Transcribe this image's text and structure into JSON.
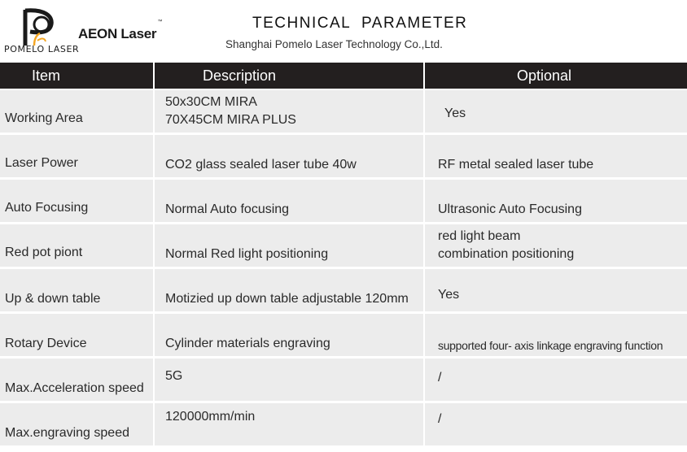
{
  "header": {
    "brand": "POMELO LASER",
    "product_brand": "AEON Laser",
    "trademark": "™",
    "title": "TECHNICAL  PARAMETER",
    "company": "Shanghai Pomelo Laser Technology Co.,Ltd."
  },
  "table": {
    "columns": [
      "Item",
      "Description",
      "Optional"
    ],
    "rows": [
      {
        "item": "Working Area",
        "description": [
          "50x30CM  MIRA",
          "70X45CM   MIRA PLUS"
        ],
        "optional": [
          "Yes"
        ]
      },
      {
        "item": "Laser Power",
        "description": [
          "CO2 glass sealed  laser tube 40w"
        ],
        "optional": [
          "RF metal sealed laser tube"
        ]
      },
      {
        "item": "Auto Focusing",
        "description": [
          "Normal Auto focusing"
        ],
        "optional": [
          "Ultrasonic Auto Focusing"
        ]
      },
      {
        "item": "Red pot piont",
        "description": [
          "Normal Red light positioning"
        ],
        "optional": [
          "red light beam",
          "combination positioning"
        ]
      },
      {
        "item": "Up & down table",
        "description": [
          "Motizied up down table adjustable 120mm"
        ],
        "optional": [
          "Yes"
        ]
      },
      {
        "item": "Rotary Device",
        "description": [
          "Cylinder materials engraving"
        ],
        "optional": [
          "supported four- axis linkage engraving function"
        ]
      },
      {
        "item": "Max.Acceleration speed",
        "description": [
          "5G"
        ],
        "optional": [
          "/"
        ]
      },
      {
        "item": "Max.engraving speed",
        "description": [
          "120000mm/min"
        ],
        "optional": [
          "/"
        ]
      }
    ]
  },
  "colors": {
    "header_bg": "#231f1f",
    "cell_bg": "#ececec",
    "logo_orange": "#f5a623"
  }
}
